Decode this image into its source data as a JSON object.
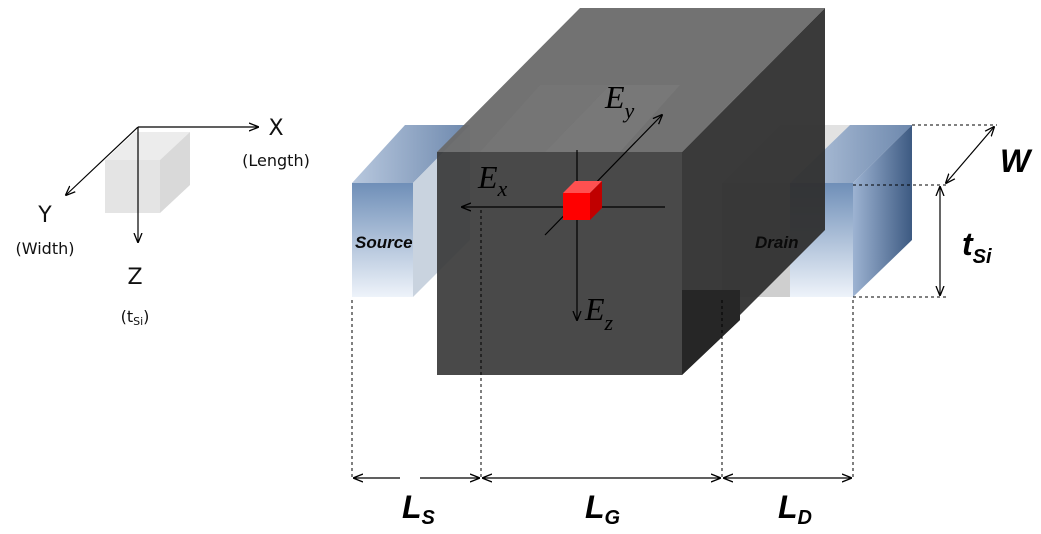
{
  "axes": [
    {
      "letter": "X",
      "caption": "(Length)"
    },
    {
      "letter": "Y",
      "caption": "(Width)"
    },
    {
      "letter": "Z",
      "caption_open": "(t",
      "caption_sub": "Si",
      "caption_close": ")"
    }
  ],
  "regions": {
    "source": "Source",
    "drain": "Drain"
  },
  "fields": [
    {
      "symbol": "E",
      "sub": "x"
    },
    {
      "symbol": "E",
      "sub": "y"
    },
    {
      "symbol": "E",
      "sub": "z"
    }
  ],
  "dimensions": {
    "width": "W",
    "thickness": {
      "symbol": "t",
      "sub": "Si"
    },
    "source_length": {
      "symbol": "L",
      "sub": "S"
    },
    "gate_length": {
      "symbol": "L",
      "sub": "G"
    },
    "drain_length": {
      "symbol": "L",
      "sub": "D"
    }
  }
}
